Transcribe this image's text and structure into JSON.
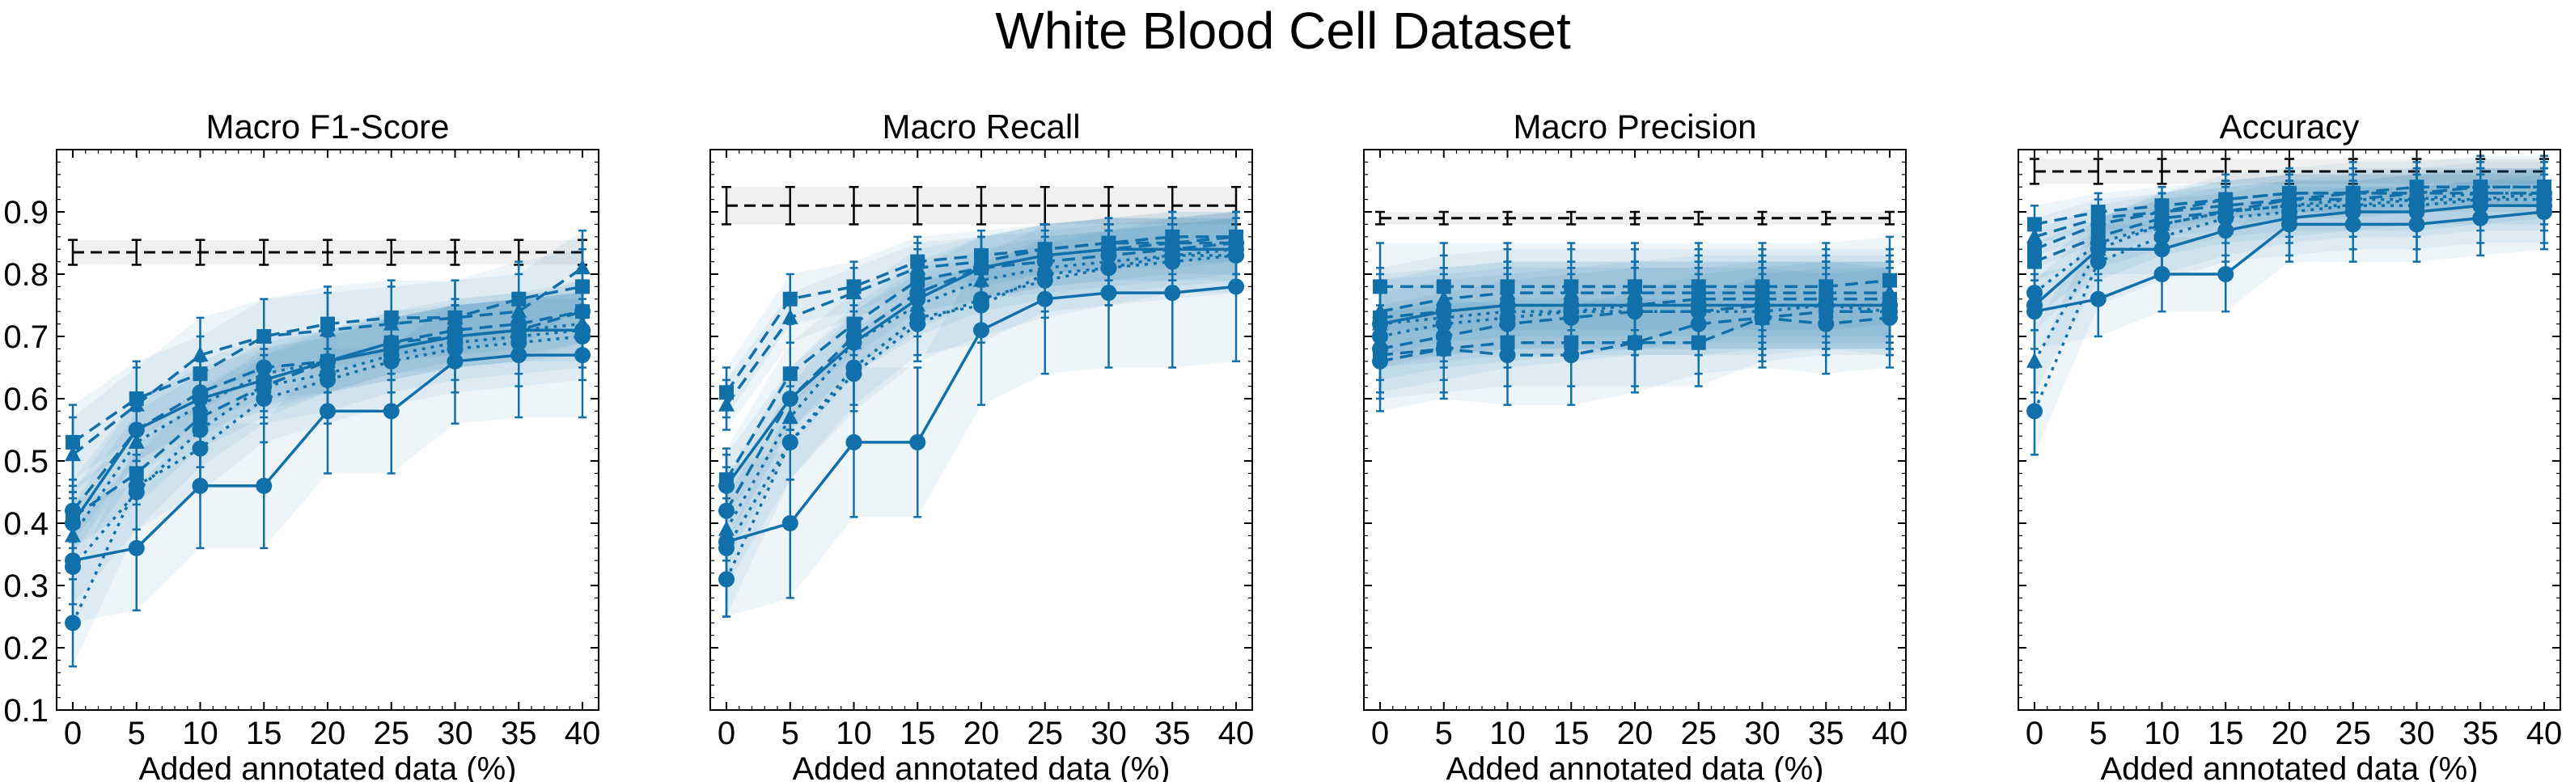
{
  "figure": {
    "title": "White Blood Cell Dataset"
  },
  "style": {
    "series_color": "#1170aa",
    "band_color": "#1170aa",
    "reference_color": "#000000",
    "reference_band_color": "#e6e6e6"
  },
  "chart_data": [
    {
      "type": "line",
      "title": "Macro F1-Score",
      "xlabel": "Added annotated data (%)",
      "ylabel": "",
      "x": [
        0,
        5,
        10,
        15,
        20,
        25,
        30,
        35,
        40
      ],
      "xticks": [
        "0",
        "5",
        "10",
        "15",
        "20",
        "25",
        "30",
        "35",
        "40"
      ],
      "ylim": [
        0.1,
        1.0
      ],
      "yticks": [
        "0.1",
        "0.2",
        "0.3",
        "0.4",
        "0.5",
        "0.6",
        "0.7",
        "0.8",
        "0.9"
      ],
      "reference": {
        "value": 0.835,
        "err": 0.02
      },
      "series": [
        {
          "marker": "square",
          "dash": "dashed",
          "values": [
            0.53,
            0.6,
            0.64,
            0.7,
            0.72,
            0.73,
            0.73,
            0.76,
            0.78
          ],
          "err": 0.06
        },
        {
          "marker": "triangle",
          "dash": "dashed",
          "values": [
            0.51,
            0.59,
            0.67,
            0.7,
            0.71,
            0.72,
            0.73,
            0.74,
            0.81
          ],
          "err": 0.06
        },
        {
          "marker": "circle",
          "dash": "dashed",
          "values": [
            0.42,
            0.55,
            0.61,
            0.65,
            0.66,
            0.69,
            0.71,
            0.72,
            0.74
          ],
          "err": 0.05
        },
        {
          "marker": "square",
          "dash": "dashed",
          "values": [
            0.41,
            0.48,
            0.57,
            0.62,
            0.66,
            0.69,
            0.7,
            0.71,
            0.74
          ],
          "err": 0.05
        },
        {
          "marker": "triangle",
          "dash": "dotted",
          "values": [
            0.38,
            0.53,
            0.59,
            0.64,
            0.66,
            0.68,
            0.7,
            0.71,
            0.72
          ],
          "err": 0.05
        },
        {
          "marker": "circle",
          "dash": "dotted",
          "values": [
            0.33,
            0.45,
            0.55,
            0.62,
            0.64,
            0.67,
            0.69,
            0.7,
            0.71
          ],
          "err": 0.06
        },
        {
          "marker": "circle",
          "dash": "dotted",
          "values": [
            0.24,
            0.46,
            0.52,
            0.6,
            0.63,
            0.66,
            0.68,
            0.69,
            0.7
          ],
          "err": 0.07
        },
        {
          "marker": "circle",
          "dash": "solid",
          "values": [
            0.4,
            0.55,
            0.6,
            0.63,
            0.66,
            0.68,
            0.7,
            0.71,
            0.71
          ],
          "err": 0.05
        },
        {
          "marker": "circle",
          "dash": "solid",
          "values": [
            0.34,
            0.36,
            0.46,
            0.46,
            0.58,
            0.58,
            0.66,
            0.67,
            0.67
          ],
          "err": 0.1
        }
      ]
    },
    {
      "type": "line",
      "title": "Macro Recall",
      "xlabel": "Added annotated data (%)",
      "ylabel": "",
      "x": [
        0,
        5,
        10,
        15,
        20,
        25,
        30,
        35,
        40
      ],
      "xticks": [
        "0",
        "5",
        "10",
        "15",
        "20",
        "25",
        "30",
        "35",
        "40"
      ],
      "ylim": [
        0.1,
        1.0
      ],
      "yticks": [],
      "reference": {
        "value": 0.91,
        "err": 0.03
      },
      "series": [
        {
          "marker": "square",
          "dash": "dashed",
          "values": [
            0.61,
            0.76,
            0.78,
            0.82,
            0.83,
            0.84,
            0.85,
            0.86,
            0.86
          ],
          "err": 0.04
        },
        {
          "marker": "triangle",
          "dash": "dashed",
          "values": [
            0.59,
            0.73,
            0.77,
            0.81,
            0.82,
            0.84,
            0.85,
            0.85,
            0.86
          ],
          "err": 0.04
        },
        {
          "marker": "square",
          "dash": "dashed",
          "values": [
            0.47,
            0.64,
            0.72,
            0.79,
            0.81,
            0.83,
            0.84,
            0.85,
            0.85
          ],
          "err": 0.05
        },
        {
          "marker": "circle",
          "dash": "dashed",
          "values": [
            0.42,
            0.6,
            0.7,
            0.77,
            0.81,
            0.82,
            0.83,
            0.84,
            0.85
          ],
          "err": 0.05
        },
        {
          "marker": "triangle",
          "dash": "dotted",
          "values": [
            0.39,
            0.57,
            0.69,
            0.75,
            0.79,
            0.81,
            0.82,
            0.83,
            0.84
          ],
          "err": 0.05
        },
        {
          "marker": "circle",
          "dash": "dotted",
          "values": [
            0.36,
            0.53,
            0.64,
            0.72,
            0.76,
            0.79,
            0.81,
            0.82,
            0.83
          ],
          "err": 0.06
        },
        {
          "marker": "circle",
          "dash": "dotted",
          "values": [
            0.31,
            0.53,
            0.65,
            0.73,
            0.75,
            0.8,
            0.81,
            0.83,
            0.83
          ],
          "err": 0.06
        },
        {
          "marker": "circle",
          "dash": "solid",
          "values": [
            0.46,
            0.6,
            0.69,
            0.76,
            0.81,
            0.83,
            0.84,
            0.84,
            0.84
          ],
          "err": 0.05
        },
        {
          "marker": "circle",
          "dash": "solid",
          "values": [
            0.37,
            0.4,
            0.53,
            0.53,
            0.71,
            0.76,
            0.77,
            0.77,
            0.78
          ],
          "err": 0.12
        }
      ]
    },
    {
      "type": "line",
      "title": "Macro Precision",
      "xlabel": "Added annotated data (%)",
      "ylabel": "",
      "x": [
        0,
        5,
        10,
        15,
        20,
        25,
        30,
        35,
        40
      ],
      "xticks": [
        "0",
        "5",
        "10",
        "15",
        "20",
        "25",
        "30",
        "35",
        "40"
      ],
      "ylim": [
        0.1,
        1.0
      ],
      "yticks": [],
      "reference": {
        "value": 0.89,
        "err": 0.01
      },
      "series": [
        {
          "marker": "square",
          "dash": "dashed",
          "values": [
            0.78,
            0.78,
            0.78,
            0.78,
            0.78,
            0.78,
            0.78,
            0.78,
            0.79
          ],
          "err": 0.07
        },
        {
          "marker": "triangle",
          "dash": "dashed",
          "values": [
            0.74,
            0.76,
            0.77,
            0.77,
            0.77,
            0.77,
            0.77,
            0.77,
            0.77
          ],
          "err": 0.07
        },
        {
          "marker": "square",
          "dash": "dashed",
          "values": [
            0.73,
            0.74,
            0.75,
            0.75,
            0.75,
            0.76,
            0.76,
            0.76,
            0.76
          ],
          "err": 0.07
        },
        {
          "marker": "circle",
          "dash": "dashed",
          "values": [
            0.68,
            0.7,
            0.72,
            0.73,
            0.74,
            0.74,
            0.75,
            0.75,
            0.75
          ],
          "err": 0.07
        },
        {
          "marker": "triangle",
          "dash": "dotted",
          "values": [
            0.72,
            0.73,
            0.74,
            0.74,
            0.75,
            0.75,
            0.75,
            0.75,
            0.75
          ],
          "err": 0.07
        },
        {
          "marker": "circle",
          "dash": "dotted",
          "values": [
            0.7,
            0.72,
            0.73,
            0.74,
            0.74,
            0.74,
            0.74,
            0.75,
            0.74
          ],
          "err": 0.07
        },
        {
          "marker": "square",
          "dash": "dashed",
          "values": [
            0.67,
            0.68,
            0.69,
            0.69,
            0.69,
            0.69,
            0.73,
            0.74,
            0.74
          ],
          "err": 0.07
        },
        {
          "marker": "circle",
          "dash": "solid",
          "values": [
            0.72,
            0.74,
            0.75,
            0.75,
            0.75,
            0.75,
            0.75,
            0.75,
            0.75
          ],
          "err": 0.07
        },
        {
          "marker": "circle",
          "dash": "dashed",
          "values": [
            0.66,
            0.68,
            0.67,
            0.67,
            0.69,
            0.72,
            0.73,
            0.72,
            0.73
          ],
          "err": 0.08
        }
      ]
    },
    {
      "type": "line",
      "title": "Accuracy",
      "xlabel": "Added annotated data (%)",
      "ylabel": "",
      "x": [
        0,
        5,
        10,
        15,
        20,
        25,
        30,
        35,
        40
      ],
      "xticks": [
        "0",
        "5",
        "10",
        "15",
        "20",
        "25",
        "30",
        "35",
        "40"
      ],
      "ylim": [
        0.1,
        1.0
      ],
      "yticks": [],
      "reference": {
        "value": 0.965,
        "err": 0.02
      },
      "series": [
        {
          "marker": "square",
          "dash": "dashed",
          "values": [
            0.88,
            0.9,
            0.91,
            0.92,
            0.93,
            0.93,
            0.94,
            0.94,
            0.94
          ],
          "err": 0.03
        },
        {
          "marker": "triangle",
          "dash": "dashed",
          "values": [
            0.86,
            0.89,
            0.9,
            0.92,
            0.93,
            0.93,
            0.93,
            0.94,
            0.94
          ],
          "err": 0.03
        },
        {
          "marker": "square",
          "dash": "dashed",
          "values": [
            0.84,
            0.88,
            0.9,
            0.91,
            0.92,
            0.93,
            0.93,
            0.94,
            0.94
          ],
          "err": 0.03
        },
        {
          "marker": "square",
          "dash": "dashed",
          "values": [
            0.82,
            0.86,
            0.89,
            0.9,
            0.92,
            0.92,
            0.93,
            0.93,
            0.93
          ],
          "err": 0.03
        },
        {
          "marker": "triangle",
          "dash": "dotted",
          "values": [
            0.66,
            0.84,
            0.88,
            0.9,
            0.91,
            0.92,
            0.92,
            0.93,
            0.93
          ],
          "err": 0.05
        },
        {
          "marker": "circle",
          "dash": "dotted",
          "values": [
            0.77,
            0.85,
            0.88,
            0.9,
            0.91,
            0.91,
            0.92,
            0.92,
            0.93
          ],
          "err": 0.04
        },
        {
          "marker": "circle",
          "dash": "dotted",
          "values": [
            0.58,
            0.82,
            0.86,
            0.89,
            0.9,
            0.91,
            0.91,
            0.92,
            0.92
          ],
          "err": 0.07
        },
        {
          "marker": "circle",
          "dash": "solid",
          "values": [
            0.75,
            0.84,
            0.84,
            0.87,
            0.89,
            0.9,
            0.9,
            0.91,
            0.91
          ],
          "err": 0.04
        },
        {
          "marker": "circle",
          "dash": "solid",
          "values": [
            0.74,
            0.76,
            0.8,
            0.8,
            0.88,
            0.88,
            0.88,
            0.89,
            0.9
          ],
          "err": 0.06
        }
      ]
    }
  ]
}
